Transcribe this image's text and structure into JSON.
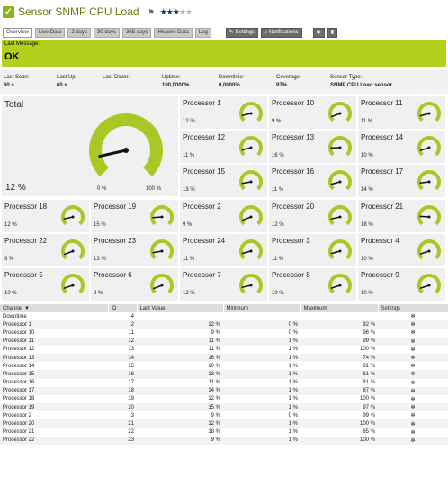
{
  "title": "Sensor SNMP CPU Load",
  "flag": "⚑",
  "stars": {
    "filled": "★★★",
    "empty": "★★"
  },
  "tabs": [
    "Overview",
    "Live Data",
    "2 days",
    "30 days",
    "365 days",
    "Historic Data",
    "Log",
    "Settings",
    "Notifications"
  ],
  "last_message": {
    "label": "Last Message:",
    "value": "OK"
  },
  "stats": [
    {
      "label": "Last Scan:",
      "value": "60 s"
    },
    {
      "label": "Last Up:",
      "value": "60 s"
    },
    {
      "label": "Last Down:",
      "value": ""
    },
    {
      "label": "Uptime:",
      "value": "100,0000%"
    },
    {
      "label": "Downtime:",
      "value": "0,0000%"
    },
    {
      "label": "Coverage:",
      "value": "97%"
    },
    {
      "label": "Sensor Type:",
      "value": "SNMP CPU Load sensor"
    }
  ],
  "total": {
    "name": "Total",
    "value": "12 %",
    "min": "0 %",
    "max": "100 %",
    "level": 12
  },
  "tiles": [
    {
      "name": "Processor 1",
      "value": "12 %",
      "level": 12
    },
    {
      "name": "Processor 10",
      "value": "9 %",
      "level": 9
    },
    {
      "name": "Processor 11",
      "value": "11 %",
      "level": 11
    },
    {
      "name": "Processor 12",
      "value": "11 %",
      "level": 11
    },
    {
      "name": "Processor 13",
      "value": "16 %",
      "level": 16
    },
    {
      "name": "Processor 14",
      "value": "10 %",
      "level": 10
    },
    {
      "name": "Processor 15",
      "value": "13 %",
      "level": 13
    },
    {
      "name": "Processor 16",
      "value": "11 %",
      "level": 11
    },
    {
      "name": "Processor 17",
      "value": "14 %",
      "level": 14
    },
    {
      "name": "Processor 18",
      "value": "12 %",
      "level": 12
    },
    {
      "name": "Processor 19",
      "value": "15 %",
      "level": 15
    },
    {
      "name": "Processor 2",
      "value": "9 %",
      "level": 9
    },
    {
      "name": "Processor 20",
      "value": "12 %",
      "level": 12
    },
    {
      "name": "Processor 21",
      "value": "18 %",
      "level": 18
    },
    {
      "name": "Processor 22",
      "value": "9 %",
      "level": 9
    },
    {
      "name": "Processor 23",
      "value": "13 %",
      "level": 13
    },
    {
      "name": "Processor 24",
      "value": "11 %",
      "level": 11
    },
    {
      "name": "Processor 3",
      "value": "11 %",
      "level": 11
    },
    {
      "name": "Processor 4",
      "value": "10 %",
      "level": 10
    },
    {
      "name": "Processor 5",
      "value": "10 %",
      "level": 10
    },
    {
      "name": "Processor 6",
      "value": "9 %",
      "level": 9
    },
    {
      "name": "Processor 7",
      "value": "12 %",
      "level": 12
    },
    {
      "name": "Processor 8",
      "value": "10 %",
      "level": 10
    },
    {
      "name": "Processor 9",
      "value": "10 %",
      "level": 10
    }
  ],
  "table": {
    "headers": {
      "channel": "Channel ▼",
      "id": "ID",
      "last": "Last Value",
      "min": "Minimum",
      "max": "Maximum",
      "settings": "Settings"
    },
    "rows": [
      {
        "channel": "Downtime",
        "id": "-4",
        "last": "",
        "min": "",
        "max": ""
      },
      {
        "channel": "Processor 1",
        "id": "2",
        "last": "12 %",
        "min": "0 %",
        "max": "92 %"
      },
      {
        "channel": "Processor 10",
        "id": "11",
        "last": "9 %",
        "min": "0 %",
        "max": "96 %"
      },
      {
        "channel": "Processor 11",
        "id": "12",
        "last": "11 %",
        "min": "1 %",
        "max": "99 %"
      },
      {
        "channel": "Processor 12",
        "id": "13",
        "last": "11 %",
        "min": "1 %",
        "max": "100 %"
      },
      {
        "channel": "Processor 13",
        "id": "14",
        "last": "16 %",
        "min": "1 %",
        "max": "74 %"
      },
      {
        "channel": "Processor 14",
        "id": "15",
        "last": "10 %",
        "min": "1 %",
        "max": "81 %"
      },
      {
        "channel": "Processor 15",
        "id": "16",
        "last": "13 %",
        "min": "1 %",
        "max": "81 %"
      },
      {
        "channel": "Processor 16",
        "id": "17",
        "last": "11 %",
        "min": "1 %",
        "max": "81 %"
      },
      {
        "channel": "Processor 17",
        "id": "18",
        "last": "14 %",
        "min": "1 %",
        "max": "87 %"
      },
      {
        "channel": "Processor 18",
        "id": "19",
        "last": "12 %",
        "min": "1 %",
        "max": "100 %"
      },
      {
        "channel": "Processor 19",
        "id": "20",
        "last": "15 %",
        "min": "1 %",
        "max": "97 %"
      },
      {
        "channel": "Processor 2",
        "id": "3",
        "last": "9 %",
        "min": "0 %",
        "max": "99 %"
      },
      {
        "channel": "Processor 20",
        "id": "21",
        "last": "12 %",
        "min": "1 %",
        "max": "100 %"
      },
      {
        "channel": "Processor 21",
        "id": "22",
        "last": "18 %",
        "min": "1 %",
        "max": "85 %"
      },
      {
        "channel": "Processor 22",
        "id": "23",
        "last": "9 %",
        "min": "1 %",
        "max": "100 %"
      }
    ]
  }
}
